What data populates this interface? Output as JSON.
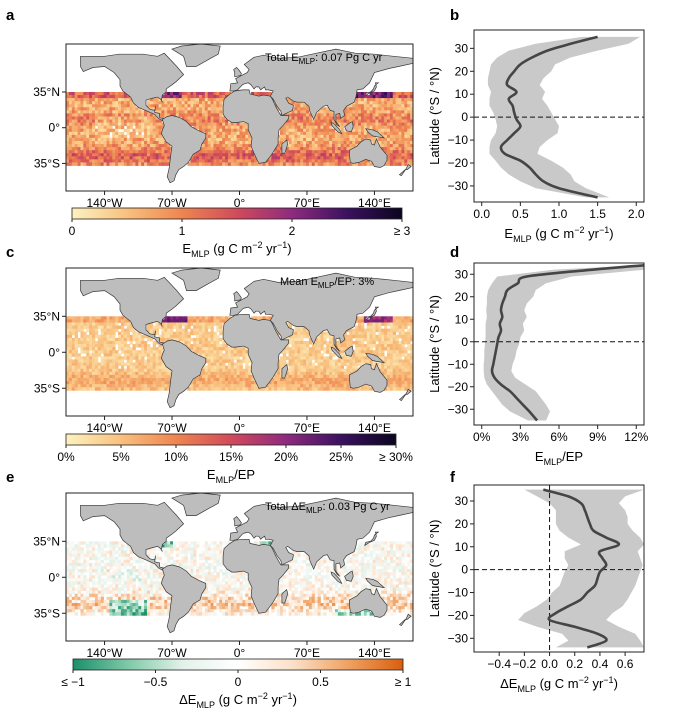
{
  "chart_data": [
    {
      "panel": "a",
      "type": "heatmap",
      "annotation_prefix": "Total E",
      "annotation_sub": "MLP",
      "annotation_suffix": ": 0.07 Pg C yr",
      "lat_ticks": [
        "35°N",
        "0°",
        "35°S"
      ],
      "lon_ticks": [
        "140°W",
        "70°W",
        "0°",
        "70°E",
        "140°E"
      ],
      "colorbar": {
        "colors": [
          "#fdf2c0",
          "#f9c07e",
          "#ef8550",
          "#d14a5b",
          "#8f2a7f",
          "#3b1160",
          "#0a0520"
        ],
        "tick_labels": [
          "0",
          "1",
          "2",
          "≥ 3"
        ],
        "tick_values": [
          0,
          1,
          2,
          3
        ],
        "range": [
          0,
          3
        ]
      },
      "colorbar_label": {
        "main": "E",
        "sub": "MLP",
        "units": " (g C m",
        "units_sup": "−2",
        "units_mid": " yr",
        "units_sup2": "−1",
        "units_end": ")"
      }
    },
    {
      "panel": "b",
      "type": "line",
      "ylabel": "Latitude (°S / °N)",
      "xlabel": {
        "main": "E",
        "sub": "MLP",
        "units": " (g C m",
        "units_sup": "−2",
        "units_mid": " yr",
        "units_sup2": "−1",
        "units_end": ")"
      },
      "xlim": [
        -0.1,
        2.1
      ],
      "ylim": [
        -37,
        38
      ],
      "xticks": [
        0,
        0.5,
        1,
        1.5,
        2
      ],
      "xtick_labels": [
        "0.0",
        "0.5",
        "1.0",
        "1.5",
        "2.0"
      ],
      "yticks": [
        30,
        20,
        10,
        0,
        -10,
        -20,
        -30
      ],
      "ytick_labels": [
        "30",
        "20",
        "10",
        "0",
        "−10",
        "−20",
        "−30"
      ],
      "reference_line": {
        "axis": "y",
        "value": 0
      },
      "series": [
        {
          "name": "mean",
          "latitude": [
            35,
            32,
            29,
            26,
            23,
            20,
            17,
            14,
            11,
            8,
            5,
            2,
            -1,
            -4,
            -7,
            -10,
            -13,
            -16,
            -19,
            -22,
            -25,
            -28,
            -31,
            -35
          ],
          "mean": [
            1.5,
            1.15,
            0.85,
            0.65,
            0.5,
            0.42,
            0.35,
            0.33,
            0.45,
            0.35,
            0.4,
            0.42,
            0.45,
            0.5,
            0.42,
            0.33,
            0.25,
            0.3,
            0.5,
            0.62,
            0.7,
            0.8,
            1.0,
            1.5
          ],
          "lower": [
            1.3,
            0.7,
            0.35,
            0.2,
            0.12,
            0.1,
            0.08,
            0.08,
            0.12,
            0.1,
            0.1,
            0.15,
            0.18,
            0.2,
            0.18,
            0.12,
            0.1,
            0.1,
            0.18,
            0.25,
            0.35,
            0.5,
            0.7,
            1.35
          ],
          "upper": [
            2.05,
            1.9,
            1.5,
            1.15,
            0.95,
            0.9,
            0.8,
            0.75,
            0.82,
            0.78,
            0.85,
            0.9,
            0.95,
            1.0,
            0.98,
            0.85,
            0.75,
            0.72,
            0.9,
            1.05,
            1.15,
            1.2,
            1.35,
            1.65
          ]
        }
      ]
    },
    {
      "panel": "c",
      "type": "heatmap",
      "annotation_prefix": "Mean E",
      "annotation_sub": "MLP",
      "annotation_suffix": "/EP: 3%",
      "lat_ticks": [
        "35°N",
        "0°",
        "35°S"
      ],
      "lon_ticks": [
        "140°W",
        "70°W",
        "0°",
        "70°E",
        "140°E"
      ],
      "colorbar": {
        "colors": [
          "#fdf2c0",
          "#f9c07e",
          "#ef8550",
          "#d14a5b",
          "#8f2a7f",
          "#3b1160",
          "#0a0520"
        ],
        "tick_labels": [
          "0%",
          "5%",
          "10%",
          "15%",
          "20%",
          "25%",
          "≥ 30%"
        ],
        "tick_values": [
          0,
          5,
          10,
          15,
          20,
          25,
          30
        ],
        "range": [
          0,
          30
        ]
      },
      "colorbar_label": {
        "main": "E",
        "sub": "MLP",
        "units": "/EP",
        "units_sup": "",
        "units_mid": "",
        "units_sup2": "",
        "units_end": ""
      }
    },
    {
      "panel": "d",
      "type": "line",
      "ylabel": "Latitude (°S / °N)",
      "xlabel": {
        "main": "E",
        "sub": "MLP",
        "units": "/EP",
        "units_sup": "",
        "units_mid": "",
        "units_sup2": "",
        "units_end": ""
      },
      "xlim": [
        -0.6,
        12.6
      ],
      "ylim": [
        -37,
        35
      ],
      "xticks": [
        0,
        3,
        6,
        9,
        12
      ],
      "xtick_labels": [
        "0%",
        "3%",
        "6%",
        "9%",
        "12%"
      ],
      "yticks": [
        30,
        20,
        10,
        0,
        -10,
        -20,
        -30
      ],
      "ytick_labels": [
        "30",
        "20",
        "10",
        "0",
        "−10",
        "−20",
        "−30"
      ],
      "reference_line": {
        "axis": "y",
        "value": 0
      },
      "series": [
        {
          "name": "mean",
          "latitude": [
            34,
            32,
            29,
            26,
            23,
            20,
            17,
            14,
            11,
            8,
            5,
            2,
            -1,
            -4,
            -7,
            -10,
            -13,
            -16,
            -19,
            -22,
            -25,
            -28,
            -31,
            -35
          ],
          "mean": [
            12.6,
            8.5,
            3.5,
            2.8,
            2.0,
            1.8,
            1.6,
            1.5,
            1.6,
            1.4,
            1.5,
            1.3,
            1.2,
            1.1,
            1.0,
            0.9,
            0.8,
            1.0,
            1.5,
            2.2,
            2.7,
            3.2,
            3.7,
            4.3
          ],
          "lower": [
            12.0,
            5.5,
            1.2,
            0.8,
            0.5,
            0.4,
            0.4,
            0.35,
            0.4,
            0.3,
            0.3,
            0.3,
            0.25,
            0.2,
            0.2,
            0.15,
            0.15,
            0.2,
            0.4,
            0.8,
            1.2,
            1.6,
            2.2,
            3.6
          ],
          "upper": [
            12.6,
            12.6,
            7.0,
            5.0,
            4.2,
            4.0,
            3.5,
            3.3,
            3.5,
            3.2,
            3.3,
            3.0,
            2.9,
            2.7,
            2.6,
            2.4,
            2.3,
            2.6,
            3.4,
            4.2,
            4.6,
            5.0,
            5.3,
            5.0
          ]
        }
      ]
    },
    {
      "panel": "e",
      "type": "heatmap",
      "annotation_prefix": "Total ΔE",
      "annotation_sub": "MLP",
      "annotation_suffix": ": 0.03 Pg C yr",
      "lat_ticks": [
        "35°N",
        "0°",
        "35°S"
      ],
      "lon_ticks": [
        "140°W",
        "70°W",
        "0°",
        "70°E",
        "140°E"
      ],
      "colorbar": {
        "colors": [
          "#1b8f6a",
          "#7fc9a8",
          "#e3f2ea",
          "#ffffff",
          "#fbe0c8",
          "#f0a263",
          "#d95f0e"
        ],
        "tick_labels": [
          "≤ −1",
          "−0.5",
          "0",
          "0.5",
          "≥ 1"
        ],
        "tick_values": [
          -1,
          -0.5,
          0,
          0.5,
          1
        ],
        "range": [
          -1,
          1
        ]
      },
      "colorbar_label": {
        "main": "ΔE",
        "sub": "MLP",
        "units": " (g C m",
        "units_sup": "−2",
        "units_mid": " yr",
        "units_sup2": "−1",
        "units_end": ")"
      }
    },
    {
      "panel": "f",
      "type": "line",
      "ylabel": "Latitude (°S / °N)",
      "xlabel": {
        "main": "ΔE",
        "sub": "MLP",
        "units": " (g C m",
        "units_sup": "−2",
        "units_mid": " yr",
        "units_sup2": "−1",
        "units_end": ")"
      },
      "xlim": [
        -0.6,
        0.75
      ],
      "ylim": [
        -36,
        37
      ],
      "xticks": [
        -0.4,
        -0.2,
        0,
        0.2,
        0.4,
        0.6
      ],
      "xtick_labels": [
        "−0.4",
        "−0.2",
        "0.0",
        "0.2",
        "0.4",
        "0.6"
      ],
      "yticks": [
        30,
        20,
        10,
        0,
        -10,
        -20,
        -30
      ],
      "ytick_labels": [
        "30",
        "20",
        "10",
        "0",
        "−10",
        "−20",
        "−30"
      ],
      "reference_line": {
        "axis": "y",
        "value": 0
      },
      "reference_line_x": {
        "axis": "x",
        "value": 0
      },
      "series": [
        {
          "name": "mean",
          "latitude": [
            35,
            32,
            29,
            26,
            23,
            20,
            17,
            14,
            11,
            8,
            5,
            2,
            -1,
            -4,
            -7,
            -10,
            -13,
            -16,
            -19,
            -22,
            -25,
            -28,
            -31,
            -34
          ],
          "mean": [
            -0.05,
            0.15,
            0.25,
            0.28,
            0.3,
            0.32,
            0.35,
            0.45,
            0.55,
            0.4,
            0.42,
            0.45,
            0.4,
            0.38,
            0.36,
            0.3,
            0.25,
            0.15,
            0.05,
            0.0,
            0.2,
            0.38,
            0.45,
            0.3
          ],
          "lower": [
            -0.2,
            -0.1,
            0.0,
            0.05,
            0.05,
            0.05,
            0.08,
            0.15,
            0.25,
            0.12,
            0.12,
            0.15,
            0.12,
            0.1,
            0.08,
            0.02,
            -0.02,
            -0.1,
            -0.2,
            -0.25,
            -0.1,
            0.1,
            0.15,
            0.05
          ],
          "upper": [
            0.75,
            0.6,
            0.55,
            0.6,
            0.62,
            0.62,
            0.66,
            0.72,
            0.75,
            0.7,
            0.72,
            0.74,
            0.72,
            0.7,
            0.68,
            0.65,
            0.62,
            0.58,
            0.5,
            0.45,
            0.55,
            0.68,
            0.72,
            0.75
          ]
        }
      ]
    }
  ]
}
